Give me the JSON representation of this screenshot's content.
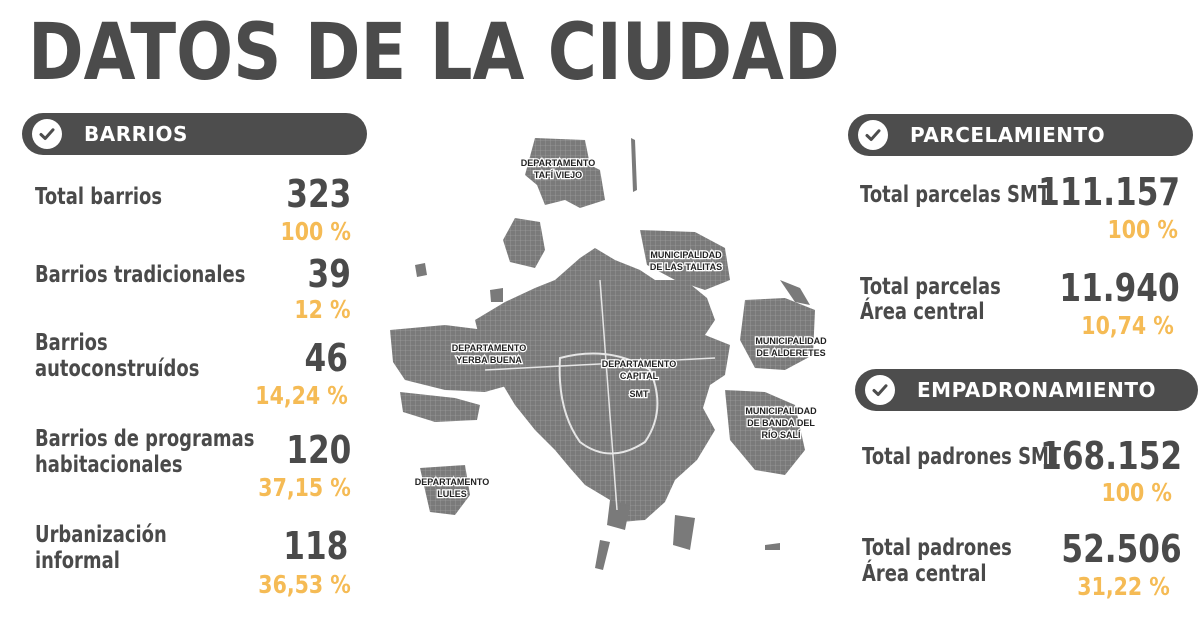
{
  "title": "DATOS DE LA CIUDAD",
  "colors": {
    "dark": "#4d4d4d",
    "accent": "#f5bb55",
    "map": "#7a7a7a"
  },
  "barrios": {
    "header": "BARRIOS",
    "icon": "check-circle-icon",
    "items": [
      {
        "label": "Total barrios",
        "value": "323",
        "pct": "100 %"
      },
      {
        "label": "Barrios tradicionales",
        "value": "39",
        "pct": "12 %"
      },
      {
        "label_l1": "Barrios",
        "label_l2": "autoconstruídos",
        "value": "46",
        "pct": "14,24 %"
      },
      {
        "label_l1": "Barrios de programas",
        "label_l2": "habitacionales",
        "value": "120",
        "pct": "37,15 %"
      },
      {
        "label_l1": "Urbanización",
        "label_l2": "informal",
        "value": "118",
        "pct": "36,53 %"
      }
    ]
  },
  "parcelamiento": {
    "header": "PARCELAMIENTO",
    "icon": "check-circle-icon",
    "items": [
      {
        "label": "Total parcelas SMT",
        "value": "111.157",
        "pct": "100 %"
      },
      {
        "label_l1": "Total parcelas",
        "label_l2": "Área central",
        "value": "11.940",
        "pct": "10,74 %"
      }
    ]
  },
  "empadronamiento": {
    "header": "EMPADRONAMIENTO",
    "icon": "check-circle-icon",
    "items": [
      {
        "label": "Total padrones SMT",
        "value": "168.152",
        "pct": "100 %"
      },
      {
        "label_l1": "Total padrones",
        "label_l2": "Área central",
        "value": "52.506",
        "pct": "31,22 %"
      }
    ]
  },
  "map": {
    "labels": {
      "tafi_l1": "DEPARTAMENTO",
      "tafi_l2": "TAFÍ VIEJO",
      "talitas_l1": "MUNICIPALIDAD",
      "talitas_l2": "DE LAS TALITAS",
      "alderetes_l1": "MUNICIPALIDAD",
      "alderetes_l2": "DE ALDERETES",
      "yerba_l1": "DEPARTAMENTO",
      "yerba_l2": "YERBA BUENA",
      "capital_l1": "DEPARTAMENTO",
      "capital_l2": "CAPITAL",
      "capital_l3": "SMT",
      "banda_l1": "MUNICIPALIDAD",
      "banda_l2": "DE BANDA DEL",
      "banda_l3": "RÍO SALÍ",
      "lules_l1": "DEPARTAMENTO",
      "lules_l2": "LULES"
    }
  }
}
